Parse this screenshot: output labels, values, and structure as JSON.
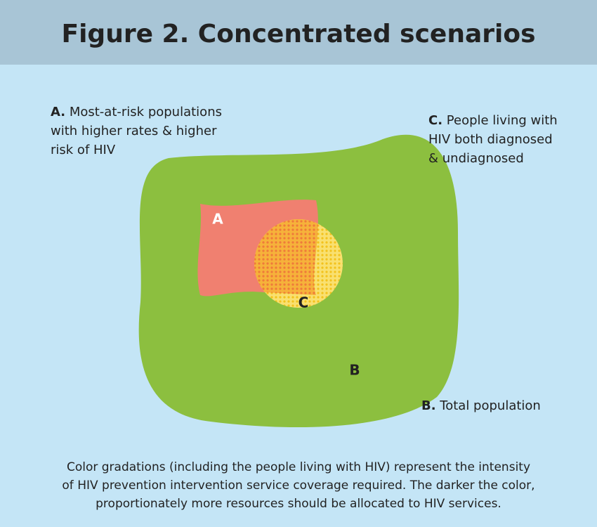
{
  "header": {
    "title": "Figure 2. Concentrated scenarios"
  },
  "labels": [
    {
      "key": "A.",
      "lines": [
        "Most-at-risk populations",
        "with higher rates & higher",
        "risk of HIV"
      ]
    },
    {
      "key": "C.",
      "lines": [
        "People living with",
        "HIV both diagnosed",
        "& undiagnosed"
      ]
    },
    {
      "key": "B.",
      "lines": [
        "Total population"
      ]
    }
  ],
  "shapes": [
    {
      "letter": "A"
    },
    {
      "letter": "C"
    },
    {
      "letter": "B"
    }
  ],
  "caption": [
    "Color gradations (including the people living with HIV) represent the intensity",
    "of HIV prevention intervention service coverage required. The darker the color,",
    "proportionately more resources should be allocated to HIV services."
  ]
}
